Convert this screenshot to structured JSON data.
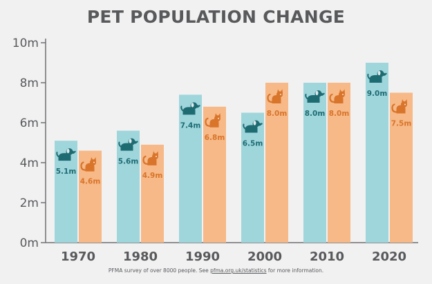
{
  "chart_data": {
    "type": "bar",
    "title": "PET POPULATION CHANGE",
    "categories": [
      "1970",
      "1980",
      "1990",
      "2000",
      "2010",
      "2020"
    ],
    "series": [
      {
        "icon": "dog-icon",
        "color": "#9ed6dc",
        "values": [
          5.1,
          5.6,
          7.4,
          6.5,
          8.0,
          9.0
        ],
        "labels": [
          "5.1m",
          "5.6m",
          "7.4m",
          "6.5m",
          "8.0m",
          "9.0m"
        ]
      },
      {
        "icon": "cat-icon",
        "color": "#f6b987",
        "values": [
          4.6,
          4.9,
          6.8,
          8.0,
          8.0,
          7.5
        ],
        "labels": [
          "4.6m",
          "4.9m",
          "6.8m",
          "8.0m",
          "8.0m",
          "7.5m"
        ]
      }
    ],
    "yticks": [
      0,
      2,
      4,
      6,
      8,
      10
    ],
    "ytick_labels": [
      "0m",
      "2m",
      "4m",
      "6m",
      "8m",
      "10m"
    ],
    "ylim": [
      0,
      10
    ],
    "grid": false
  },
  "colors": {
    "dog_icon": "#1f6b72",
    "cat_icon": "#d9742b",
    "text": "#58595b"
  },
  "footer": {
    "prefix": "PFMA survey of over 8000 people. See ",
    "link": "pfma.org.uk/statistics",
    "suffix": " for more information."
  }
}
